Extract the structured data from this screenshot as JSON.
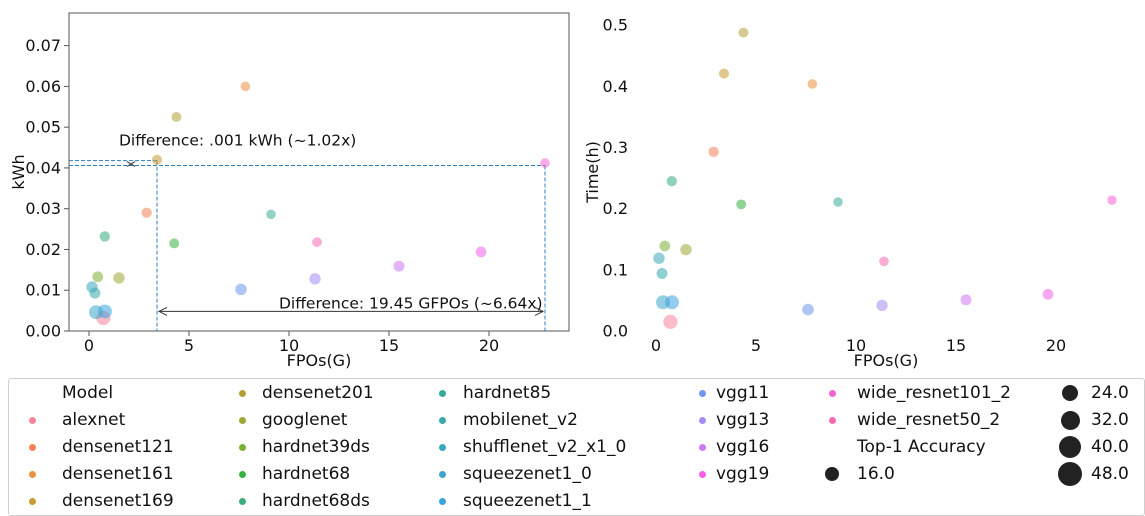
{
  "chart_data": [
    {
      "type": "scatter",
      "xlabel": "FPOs(G)",
      "ylabel": "kWh",
      "xlim": [
        -1.0,
        24.0
      ],
      "ylim": [
        0.0,
        0.078
      ],
      "xticks": [
        "0",
        "5",
        "10",
        "15",
        "20"
      ],
      "yticks": [
        "0.00",
        "0.01",
        "0.02",
        "0.03",
        "0.04",
        "0.05",
        "0.06",
        "0.07"
      ],
      "framed": true,
      "points": [
        {
          "model": "alexnet",
          "x": 0.72,
          "y": 0.0032,
          "acc": 43
        },
        {
          "model": "densenet121",
          "x": 2.88,
          "y": 0.029,
          "acc": 25
        },
        {
          "model": "densenet161",
          "x": 7.82,
          "y": 0.06,
          "acc": 22
        },
        {
          "model": "densenet169",
          "x": 3.4,
          "y": 0.042,
          "acc": 24
        },
        {
          "model": "densenet201",
          "x": 4.37,
          "y": 0.0525,
          "acc": 23
        },
        {
          "model": "googlenet",
          "x": 1.5,
          "y": 0.013,
          "acc": 30
        },
        {
          "model": "hardnet39ds",
          "x": 0.44,
          "y": 0.0133,
          "acc": 27
        },
        {
          "model": "hardnet68",
          "x": 4.26,
          "y": 0.0215,
          "acc": 23
        },
        {
          "model": "hardnet68ds",
          "x": 0.79,
          "y": 0.0232,
          "acc": 25
        },
        {
          "model": "hardnet85",
          "x": 9.1,
          "y": 0.0286,
          "acc": 21
        },
        {
          "model": "mobilenet_v2",
          "x": 0.3,
          "y": 0.0093,
          "acc": 28
        },
        {
          "model": "shufflenet_v2_x1_0",
          "x": 0.15,
          "y": 0.0108,
          "acc": 30
        },
        {
          "model": "squeezenet1_0",
          "x": 0.35,
          "y": 0.0046,
          "acc": 42
        },
        {
          "model": "squeezenet1_1",
          "x": 0.8,
          "y": 0.0048,
          "acc": 42
        },
        {
          "model": "vgg11",
          "x": 7.6,
          "y": 0.0102,
          "acc": 31
        },
        {
          "model": "vgg13",
          "x": 11.3,
          "y": 0.0128,
          "acc": 30
        },
        {
          "model": "vgg16",
          "x": 15.5,
          "y": 0.0159,
          "acc": 28
        },
        {
          "model": "vgg19",
          "x": 19.6,
          "y": 0.0194,
          "acc": 27
        },
        {
          "model": "wide_resnet101_2",
          "x": 22.8,
          "y": 0.0412,
          "acc": 21
        },
        {
          "model": "wide_resnet50_2",
          "x": 11.4,
          "y": 0.0218,
          "acc": 22
        }
      ],
      "annotations": [
        {
          "text": "Difference: .001 kWh (~1.02x)",
          "x": 1.5,
          "y": 0.0455
        },
        {
          "text": "Difference: 19.45 GFPOs (~6.64x)",
          "x": 9.5,
          "y": 0.0055
        }
      ],
      "guides": {
        "x_low": 3.4,
        "x_high": 22.8,
        "y_low": 0.0406,
        "y_high": 0.0418
      }
    },
    {
      "type": "scatter",
      "xlabel": "FPOs(G)",
      "ylabel": "Time(h)",
      "xlim": [
        -1.0,
        24.0
      ],
      "ylim": [
        0.0,
        0.52
      ],
      "xticks": [
        "0",
        "5",
        "10",
        "15",
        "20"
      ],
      "yticks": [
        "0.0",
        "0.1",
        "0.2",
        "0.3",
        "0.4",
        "0.5"
      ],
      "framed": false,
      "points": [
        {
          "model": "alexnet",
          "x": 0.72,
          "y": 0.015,
          "acc": 43
        },
        {
          "model": "densenet121",
          "x": 2.88,
          "y": 0.293,
          "acc": 25
        },
        {
          "model": "densenet161",
          "x": 7.82,
          "y": 0.404,
          "acc": 22
        },
        {
          "model": "densenet169",
          "x": 3.4,
          "y": 0.421,
          "acc": 24
        },
        {
          "model": "densenet201",
          "x": 4.37,
          "y": 0.488,
          "acc": 23
        },
        {
          "model": "googlenet",
          "x": 1.5,
          "y": 0.133,
          "acc": 30
        },
        {
          "model": "hardnet39ds",
          "x": 0.44,
          "y": 0.139,
          "acc": 27
        },
        {
          "model": "hardnet68",
          "x": 4.26,
          "y": 0.207,
          "acc": 23
        },
        {
          "model": "hardnet68ds",
          "x": 0.79,
          "y": 0.245,
          "acc": 25
        },
        {
          "model": "hardnet85",
          "x": 9.1,
          "y": 0.211,
          "acc": 21
        },
        {
          "model": "mobilenet_v2",
          "x": 0.3,
          "y": 0.094,
          "acc": 28
        },
        {
          "model": "shufflenet_v2_x1_0",
          "x": 0.15,
          "y": 0.119,
          "acc": 30
        },
        {
          "model": "squeezenet1_0",
          "x": 0.35,
          "y": 0.047,
          "acc": 42
        },
        {
          "model": "squeezenet1_1",
          "x": 0.8,
          "y": 0.047,
          "acc": 42
        },
        {
          "model": "vgg11",
          "x": 7.6,
          "y": 0.035,
          "acc": 31
        },
        {
          "model": "vgg13",
          "x": 11.3,
          "y": 0.042,
          "acc": 30
        },
        {
          "model": "vgg16",
          "x": 15.5,
          "y": 0.051,
          "acc": 28
        },
        {
          "model": "vgg19",
          "x": 19.6,
          "y": 0.06,
          "acc": 27
        },
        {
          "model": "wide_resnet101_2",
          "x": 22.8,
          "y": 0.214,
          "acc": 21
        },
        {
          "model": "wide_resnet50_2",
          "x": 11.4,
          "y": 0.114,
          "acc": 22
        }
      ]
    }
  ],
  "legend": {
    "title_model": "Model",
    "title_size": "Top-1 Accuracy",
    "models": [
      {
        "name": "alexnet",
        "color": "#f7839a"
      },
      {
        "name": "densenet121",
        "color": "#f4815a"
      },
      {
        "name": "densenet161",
        "color": "#e9923f"
      },
      {
        "name": "densenet169",
        "color": "#c99a36"
      },
      {
        "name": "densenet201",
        "color": "#b3a035"
      },
      {
        "name": "googlenet",
        "color": "#9ea834"
      },
      {
        "name": "hardnet39ds",
        "color": "#7daf35"
      },
      {
        "name": "hardnet68",
        "color": "#36b041"
      },
      {
        "name": "hardnet68ds",
        "color": "#35ad7d"
      },
      {
        "name": "hardnet85",
        "color": "#36ac98"
      },
      {
        "name": "mobilenet_v2",
        "color": "#37aaa9"
      },
      {
        "name": "shufflenet_v2_x1_0",
        "color": "#38a8ba"
      },
      {
        "name": "squeezenet1_0",
        "color": "#3ba6c9"
      },
      {
        "name": "squeezenet1_1",
        "color": "#3aa3de"
      },
      {
        "name": "vgg11",
        "color": "#6e97ed"
      },
      {
        "name": "vgg13",
        "color": "#a48cf4"
      },
      {
        "name": "vgg16",
        "color": "#cc79f3"
      },
      {
        "name": "vgg19",
        "color": "#f45ee9"
      },
      {
        "name": "wide_resnet101_2",
        "color": "#f564d1"
      },
      {
        "name": "wide_resnet50_2",
        "color": "#f76ab3"
      }
    ],
    "sizes": [
      "16.0",
      "24.0",
      "32.0",
      "40.0",
      "48.0"
    ],
    "size_values": [
      16,
      24,
      32,
      40,
      48
    ]
  }
}
